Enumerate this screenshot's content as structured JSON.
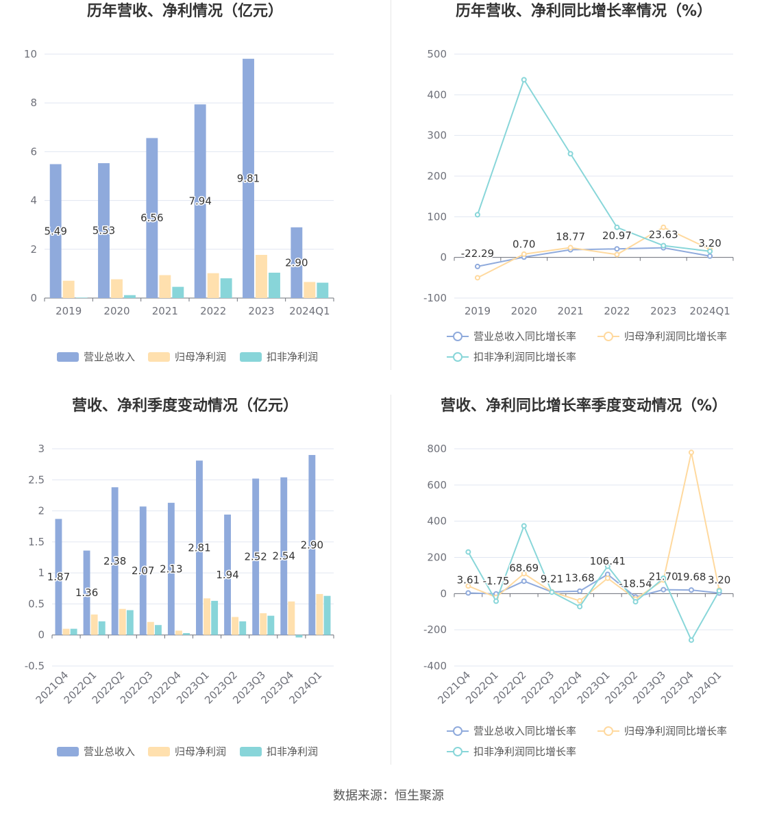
{
  "chart_data": [
    {
      "type": "bar",
      "title": "历年营收、净利情况（亿元）",
      "categories": [
        "2019",
        "2020",
        "2021",
        "2022",
        "2023",
        "2024Q1"
      ],
      "series": [
        {
          "name": "营业总收入",
          "values": [
            5.49,
            5.53,
            6.56,
            7.94,
            9.81,
            2.9
          ],
          "color": "#8faadc",
          "show_labels": true
        },
        {
          "name": "归母净利润",
          "values": [
            0.71,
            0.77,
            0.94,
            1.02,
            1.77,
            0.66
          ],
          "color": "#ffe0ae"
        },
        {
          "name": "扣非净利润",
          "values": [
            0.02,
            0.12,
            0.46,
            0.81,
            1.04,
            0.63
          ],
          "color": "#88d5d9"
        }
      ],
      "yticks": [
        0,
        2,
        4,
        6,
        8,
        10
      ],
      "ylim": [
        0,
        10
      ],
      "grid": true,
      "legend": "bottom"
    },
    {
      "type": "line",
      "title": "历年营收、净利同比增长率情况（%）",
      "categories": [
        "2019",
        "2020",
        "2021",
        "2022",
        "2023",
        "2024Q1"
      ],
      "series": [
        {
          "name": "营业总收入同比增长率",
          "values": [
            -22.29,
            0.7,
            18.77,
            20.97,
            23.63,
            3.2
          ],
          "color": "#8faadc",
          "show_labels": true
        },
        {
          "name": "归母净利润同比增长率",
          "values": [
            -50,
            8,
            24,
            7,
            74,
            20
          ],
          "color": "#ffd99e"
        },
        {
          "name": "扣非净利润同比增长率",
          "values": [
            105,
            437,
            255,
            74,
            29,
            15
          ],
          "color": "#88d6d9"
        }
      ],
      "yticks": [
        -100,
        0,
        100,
        200,
        300,
        400,
        500
      ],
      "ylim": [
        -100,
        500
      ],
      "grid": true,
      "legend": "bottom"
    },
    {
      "type": "bar",
      "title": "营收、净利季度变动情况（亿元）",
      "categories": [
        "2021Q4",
        "2022Q1",
        "2022Q2",
        "2022Q3",
        "2022Q4",
        "2023Q1",
        "2023Q2",
        "2023Q3",
        "2023Q4",
        "2024Q1"
      ],
      "series": [
        {
          "name": "营业总收入",
          "values": [
            1.87,
            1.36,
            2.38,
            2.07,
            2.13,
            2.81,
            1.94,
            2.52,
            2.54,
            2.9
          ],
          "color": "#8faadc",
          "show_labels": true
        },
        {
          "name": "归母净利润",
          "values": [
            0.1,
            0.33,
            0.42,
            0.21,
            0.07,
            0.59,
            0.29,
            0.35,
            0.54,
            0.66
          ],
          "color": "#ffe0ae"
        },
        {
          "name": "扣非净利润",
          "values": [
            0.1,
            0.22,
            0.4,
            0.16,
            0.03,
            0.55,
            0.22,
            0.31,
            -0.04,
            0.63
          ],
          "color": "#88d5d9"
        }
      ],
      "yticks": [
        -0.5,
        0,
        0.5,
        1,
        1.5,
        2,
        2.5,
        3
      ],
      "ylim": [
        -0.5,
        3
      ],
      "grid": true,
      "legend": "bottom"
    },
    {
      "type": "line",
      "title": "营收、净利同比增长率季度变动情况（%）",
      "categories": [
        "2021Q4",
        "2022Q1",
        "2022Q2",
        "2022Q3",
        "2022Q4",
        "2023Q1",
        "2023Q2",
        "2023Q3",
        "2023Q4",
        "2024Q1"
      ],
      "series": [
        {
          "name": "营业总收入同比增长率",
          "values": [
            3.61,
            -1.75,
            68.69,
            9.21,
            13.68,
            106.41,
            -18.54,
            21.7,
            19.68,
            3.2
          ],
          "color": "#8faadc",
          "show_labels": true
        },
        {
          "name": "归母净利润同比增长率",
          "values": [
            42,
            -20,
            110,
            10,
            -40,
            85,
            -30,
            75,
            780,
            20
          ],
          "color": "#ffd99e"
        },
        {
          "name": "扣非净利润同比增长率",
          "values": [
            230,
            -42,
            374,
            8,
            -72,
            151,
            -45,
            85,
            -257,
            15
          ],
          "color": "#88d6d9"
        }
      ],
      "yticks": [
        -400,
        -200,
        0,
        200,
        400,
        600,
        800
      ],
      "ylim": [
        -400,
        800
      ],
      "grid": true,
      "legend": "bottom"
    }
  ],
  "footer": {
    "source": "数据来源：恒生聚源"
  }
}
